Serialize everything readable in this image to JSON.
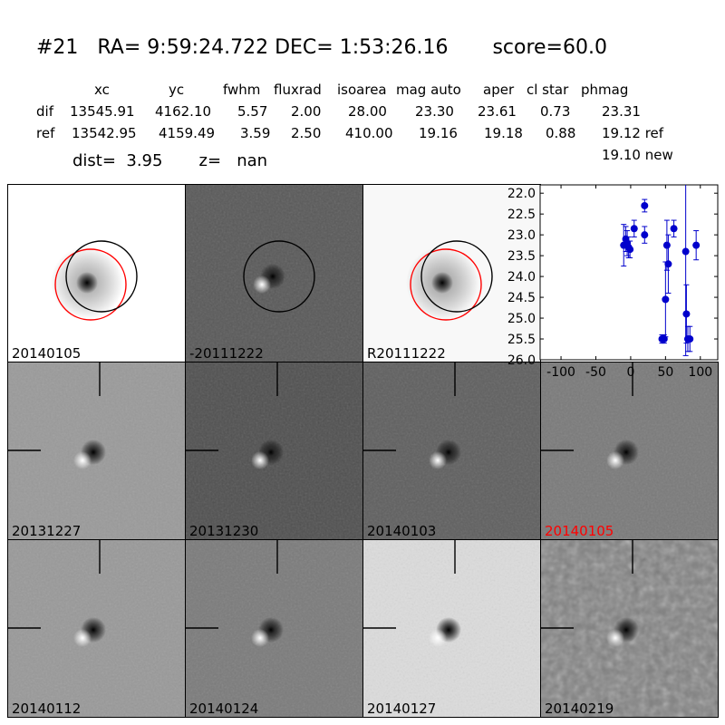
{
  "header": {
    "title": "#21   RA= 9:59:24.722 DEC= 1:53:26.16       score=60.0",
    "columns": [
      "xc",
      "yc",
      "fwhm",
      "fluxrad",
      "isoarea",
      "mag auto",
      "aper",
      "cl star",
      "phmag"
    ],
    "dif": {
      "label": "dif",
      "values": [
        "13545.91",
        "4162.10",
        "5.57",
        "2.00",
        "28.00",
        "23.30",
        "23.61",
        "0.73",
        "23.31"
      ]
    },
    "ref": {
      "label": "ref",
      "values": [
        "13542.95",
        "4159.49",
        "3.59",
        "2.50",
        "410.00",
        "19.16",
        "19.18",
        "0.88",
        "19.12 ref"
      ]
    },
    "new_mag": "19.10 new",
    "dist_z": "dist=  3.95       z=   nan"
  },
  "panels": [
    {
      "label": "20140105",
      "bg": "#ffffff",
      "kind": "star",
      "circles": true
    },
    {
      "label": "-20111222",
      "bg": "#595959",
      "kind": "dipole",
      "circles": true
    },
    {
      "label": "R20111222",
      "bg": "#f8f8f8",
      "kind": "star",
      "circles": true
    },
    {
      "label": "20131227",
      "bg": "#9a9a9a",
      "kind": "dipole",
      "marks": true
    },
    {
      "label": "20131230",
      "bg": "#505050",
      "kind": "dipole",
      "marks": true
    },
    {
      "label": "20140103",
      "bg": "#5f5f5f",
      "kind": "dipole",
      "marks": true
    },
    {
      "label": "20140105",
      "bg": "#7a7a7a",
      "kind": "dipole",
      "marks": true,
      "label_color": "#ff0000"
    },
    {
      "label": "20140112",
      "bg": "#999999",
      "kind": "dipole",
      "marks": true
    },
    {
      "label": "20140124",
      "bg": "#7b7b7b",
      "kind": "dipole",
      "marks": true
    },
    {
      "label": "20140127",
      "bg": "#dcdcdc",
      "kind": "dipole",
      "marks": true
    },
    {
      "label": "20140219",
      "bg": "#808080",
      "kind": "noisy",
      "marks": true
    }
  ],
  "chart_data": {
    "type": "scatter",
    "xlim": [
      -130,
      125
    ],
    "ylim": [
      26.0,
      21.8
    ],
    "yaxis_inverted": true,
    "x_ticks": [
      -100,
      -50,
      0,
      50,
      100
    ],
    "x_tick_labels": [
      "-100",
      "-50",
      "0",
      "50",
      "100"
    ],
    "y_ticks": [
      22.0,
      22.5,
      23.0,
      23.5,
      24.0,
      24.5,
      25.0,
      25.5,
      26.0
    ],
    "y_tick_labels": [
      "22.0",
      "22.5",
      "23.0",
      "23.5",
      "24.0",
      "24.5",
      "25.0",
      "25.5",
      "26.0"
    ],
    "color": "#0000cc",
    "points": [
      {
        "x": -10,
        "y": 23.25,
        "err": 0.5
      },
      {
        "x": -7,
        "y": 23.1,
        "err": 0.3
      },
      {
        "x": -5,
        "y": 23.2,
        "err": 0.3
      },
      {
        "x": -3,
        "y": 23.3,
        "err": 0.25
      },
      {
        "x": -1,
        "y": 23.35,
        "err": 0.2
      },
      {
        "x": 5,
        "y": 22.85,
        "err": 0.2
      },
      {
        "x": 20,
        "y": 22.3,
        "err": 0.15
      },
      {
        "x": 20,
        "y": 23.0,
        "err": 0.2
      },
      {
        "x": 45,
        "y": 25.5,
        "err": 0.1
      },
      {
        "x": 48,
        "y": 25.5,
        "err": 0.1
      },
      {
        "x": 50,
        "y": 24.55,
        "err": 0.9
      },
      {
        "x": 52,
        "y": 23.25,
        "err": 0.6
      },
      {
        "x": 54,
        "y": 23.7,
        "err": 0.7
      },
      {
        "x": 62,
        "y": 22.85,
        "err": 0.2
      },
      {
        "x": 79,
        "y": 23.4,
        "err": 2.5
      },
      {
        "x": 80,
        "y": 24.9,
        "err": 0.7
      },
      {
        "x": 82,
        "y": 25.5,
        "err": 0.3
      },
      {
        "x": 85,
        "y": 25.5,
        "err": 0.3
      },
      {
        "x": 94,
        "y": 23.25,
        "err": 0.35
      }
    ]
  }
}
